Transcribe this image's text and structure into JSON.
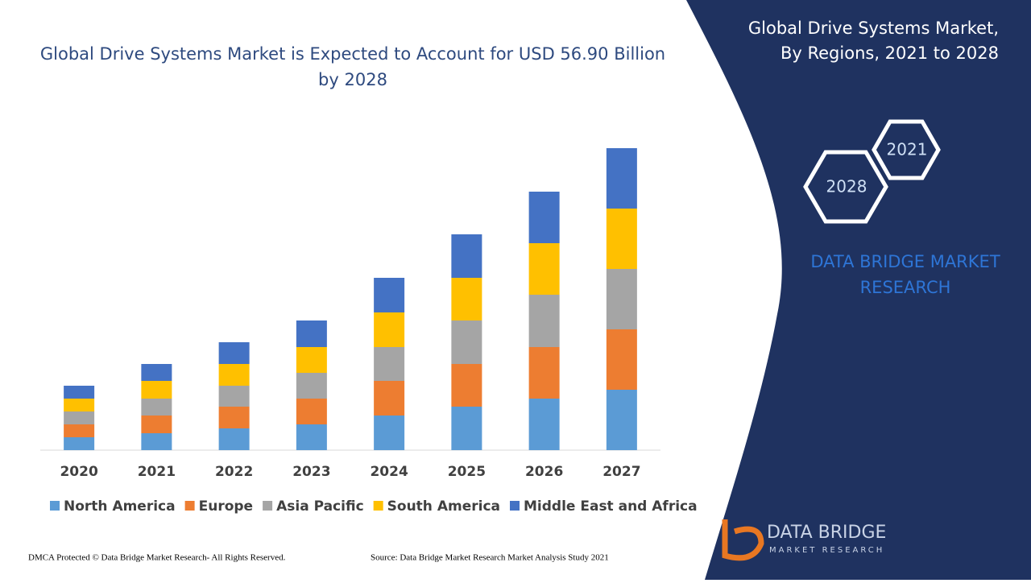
{
  "chart_data": {
    "type": "stacked_bar",
    "title": "Global Drive Systems Market is Expected to Account for USD 56.90 Billion by 2028",
    "categories": [
      "2020",
      "2021",
      "2022",
      "2023",
      "2024",
      "2025",
      "2026",
      "2027"
    ],
    "series": [
      {
        "name": "North America",
        "color": "#5b9bd5",
        "values": [
          16,
          21,
          27,
          32,
          43,
          54,
          64,
          75
        ]
      },
      {
        "name": "Europe",
        "color": "#ed7d31",
        "values": [
          16,
          22,
          27,
          32,
          43,
          53,
          64,
          75
        ]
      },
      {
        "name": "Asia Pacific",
        "color": "#a5a5a5",
        "values": [
          16,
          21,
          26,
          32,
          42,
          54,
          65,
          75
        ]
      },
      {
        "name": "South America",
        "color": "#ffc000",
        "values": [
          16,
          22,
          27,
          32,
          43,
          53,
          64,
          75
        ]
      },
      {
        "name": "Middle East and Africa",
        "color": "#4472c4",
        "values": [
          16,
          21,
          27,
          33,
          43,
          54,
          64,
          75
        ]
      }
    ],
    "legend": "bottom"
  },
  "panel": {
    "title_line1": "Global Drive Systems Market,",
    "title_line2": "By Regions, 2021 to 2028",
    "hex_small": "2021",
    "hex_large": "2028",
    "brand_line1": "DATA BRIDGE MARKET",
    "brand_line2": "RESEARCH"
  },
  "logo": {
    "name": "DATA BRIDGE",
    "tagline": "MARKET RESEARCH"
  },
  "footer": {
    "left": "DMCA Protected © Data Bridge Market Research- All Rights Reserved.",
    "right": "Source: Data Bridge Market Research Market Analysis Study 2021"
  }
}
